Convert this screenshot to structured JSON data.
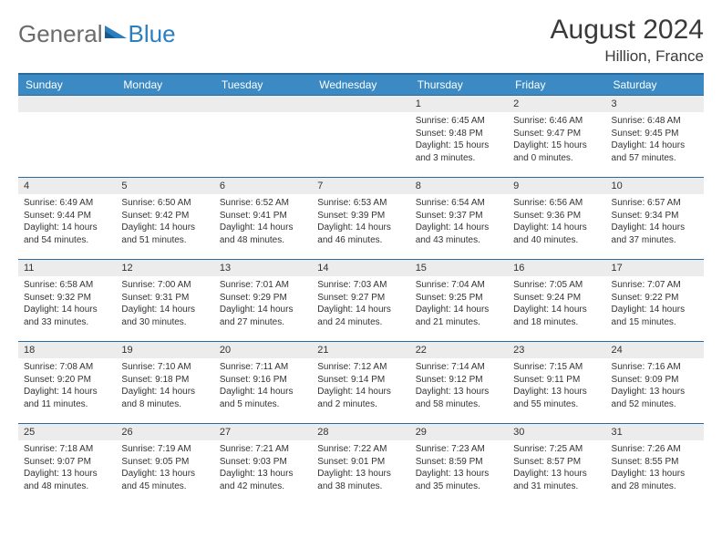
{
  "brand": {
    "part1": "General",
    "part2": "Blue"
  },
  "title": "August 2024",
  "location": "Hillion, France",
  "colors": {
    "header_bg": "#3b8ac4",
    "header_border": "#2b6a9a",
    "daynum_bg": "#ececec",
    "text": "#333333"
  },
  "weekdays": [
    "Sunday",
    "Monday",
    "Tuesday",
    "Wednesday",
    "Thursday",
    "Friday",
    "Saturday"
  ],
  "weeks": [
    [
      {
        "blank": true
      },
      {
        "blank": true
      },
      {
        "blank": true
      },
      {
        "blank": true
      },
      {
        "n": "1",
        "sr": "6:45 AM",
        "ss": "9:48 PM",
        "dl": "15 hours and 3 minutes."
      },
      {
        "n": "2",
        "sr": "6:46 AM",
        "ss": "9:47 PM",
        "dl": "15 hours and 0 minutes."
      },
      {
        "n": "3",
        "sr": "6:48 AM",
        "ss": "9:45 PM",
        "dl": "14 hours and 57 minutes."
      }
    ],
    [
      {
        "n": "4",
        "sr": "6:49 AM",
        "ss": "9:44 PM",
        "dl": "14 hours and 54 minutes."
      },
      {
        "n": "5",
        "sr": "6:50 AM",
        "ss": "9:42 PM",
        "dl": "14 hours and 51 minutes."
      },
      {
        "n": "6",
        "sr": "6:52 AM",
        "ss": "9:41 PM",
        "dl": "14 hours and 48 minutes."
      },
      {
        "n": "7",
        "sr": "6:53 AM",
        "ss": "9:39 PM",
        "dl": "14 hours and 46 minutes."
      },
      {
        "n": "8",
        "sr": "6:54 AM",
        "ss": "9:37 PM",
        "dl": "14 hours and 43 minutes."
      },
      {
        "n": "9",
        "sr": "6:56 AM",
        "ss": "9:36 PM",
        "dl": "14 hours and 40 minutes."
      },
      {
        "n": "10",
        "sr": "6:57 AM",
        "ss": "9:34 PM",
        "dl": "14 hours and 37 minutes."
      }
    ],
    [
      {
        "n": "11",
        "sr": "6:58 AM",
        "ss": "9:32 PM",
        "dl": "14 hours and 33 minutes."
      },
      {
        "n": "12",
        "sr": "7:00 AM",
        "ss": "9:31 PM",
        "dl": "14 hours and 30 minutes."
      },
      {
        "n": "13",
        "sr": "7:01 AM",
        "ss": "9:29 PM",
        "dl": "14 hours and 27 minutes."
      },
      {
        "n": "14",
        "sr": "7:03 AM",
        "ss": "9:27 PM",
        "dl": "14 hours and 24 minutes."
      },
      {
        "n": "15",
        "sr": "7:04 AM",
        "ss": "9:25 PM",
        "dl": "14 hours and 21 minutes."
      },
      {
        "n": "16",
        "sr": "7:05 AM",
        "ss": "9:24 PM",
        "dl": "14 hours and 18 minutes."
      },
      {
        "n": "17",
        "sr": "7:07 AM",
        "ss": "9:22 PM",
        "dl": "14 hours and 15 minutes."
      }
    ],
    [
      {
        "n": "18",
        "sr": "7:08 AM",
        "ss": "9:20 PM",
        "dl": "14 hours and 11 minutes."
      },
      {
        "n": "19",
        "sr": "7:10 AM",
        "ss": "9:18 PM",
        "dl": "14 hours and 8 minutes."
      },
      {
        "n": "20",
        "sr": "7:11 AM",
        "ss": "9:16 PM",
        "dl": "14 hours and 5 minutes."
      },
      {
        "n": "21",
        "sr": "7:12 AM",
        "ss": "9:14 PM",
        "dl": "14 hours and 2 minutes."
      },
      {
        "n": "22",
        "sr": "7:14 AM",
        "ss": "9:12 PM",
        "dl": "13 hours and 58 minutes."
      },
      {
        "n": "23",
        "sr": "7:15 AM",
        "ss": "9:11 PM",
        "dl": "13 hours and 55 minutes."
      },
      {
        "n": "24",
        "sr": "7:16 AM",
        "ss": "9:09 PM",
        "dl": "13 hours and 52 minutes."
      }
    ],
    [
      {
        "n": "25",
        "sr": "7:18 AM",
        "ss": "9:07 PM",
        "dl": "13 hours and 48 minutes."
      },
      {
        "n": "26",
        "sr": "7:19 AM",
        "ss": "9:05 PM",
        "dl": "13 hours and 45 minutes."
      },
      {
        "n": "27",
        "sr": "7:21 AM",
        "ss": "9:03 PM",
        "dl": "13 hours and 42 minutes."
      },
      {
        "n": "28",
        "sr": "7:22 AM",
        "ss": "9:01 PM",
        "dl": "13 hours and 38 minutes."
      },
      {
        "n": "29",
        "sr": "7:23 AM",
        "ss": "8:59 PM",
        "dl": "13 hours and 35 minutes."
      },
      {
        "n": "30",
        "sr": "7:25 AM",
        "ss": "8:57 PM",
        "dl": "13 hours and 31 minutes."
      },
      {
        "n": "31",
        "sr": "7:26 AM",
        "ss": "8:55 PM",
        "dl": "13 hours and 28 minutes."
      }
    ]
  ],
  "labels": {
    "sunrise": "Sunrise:",
    "sunset": "Sunset:",
    "daylight": "Daylight:"
  }
}
